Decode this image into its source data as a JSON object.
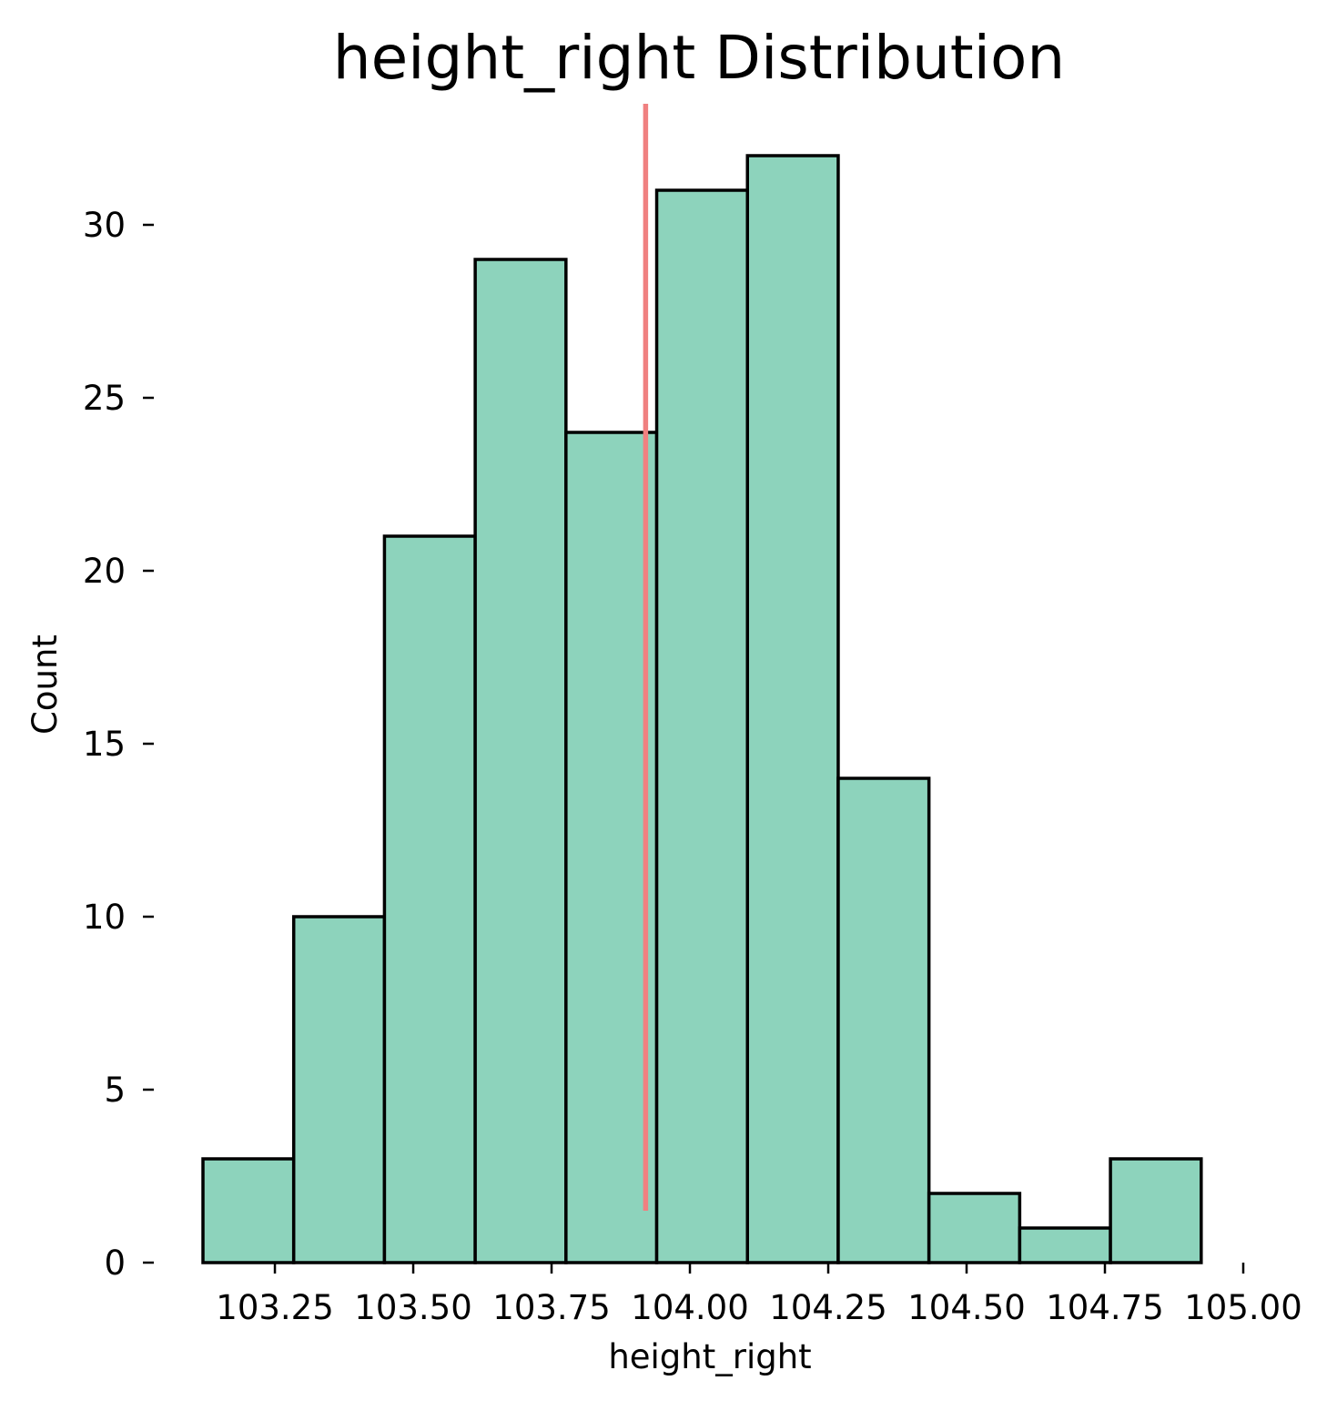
{
  "chart_data": {
    "type": "bar",
    "title": "height_right Distribution",
    "xlabel": "height_right",
    "ylabel": "Count",
    "bins": [
      {
        "x0": 103.12,
        "x1": 103.284,
        "count": 3
      },
      {
        "x0": 103.284,
        "x1": 103.448,
        "count": 10
      },
      {
        "x0": 103.448,
        "x1": 103.612,
        "count": 21
      },
      {
        "x0": 103.612,
        "x1": 103.776,
        "count": 29
      },
      {
        "x0": 103.776,
        "x1": 103.94,
        "count": 24
      },
      {
        "x0": 103.94,
        "x1": 104.104,
        "count": 31
      },
      {
        "x0": 104.104,
        "x1": 104.268,
        "count": 32
      },
      {
        "x0": 104.268,
        "x1": 104.432,
        "count": 14
      },
      {
        "x0": 104.432,
        "x1": 104.596,
        "count": 2
      },
      {
        "x0": 104.596,
        "x1": 104.76,
        "count": 1
      },
      {
        "x0": 104.76,
        "x1": 104.924,
        "count": 3
      }
    ],
    "mean_line": {
      "x": 103.92,
      "y_range": [
        1.5,
        33.5
      ],
      "color": "#f08080"
    },
    "xlim": [
      103.12,
      105.0
    ],
    "ylim": [
      0,
      33.5
    ],
    "xticks": [
      103.25,
      103.5,
      103.75,
      104.0,
      104.25,
      104.5,
      104.75,
      105.0
    ],
    "xtick_labels": [
      "103.25",
      "103.50",
      "103.75",
      "104.00",
      "104.25",
      "104.50",
      "104.75",
      "105.00"
    ],
    "yticks": [
      0,
      5,
      10,
      15,
      20,
      25,
      30
    ],
    "ytick_labels": [
      "0",
      "5",
      "10",
      "15",
      "20",
      "25",
      "30"
    ],
    "grid": false,
    "bar_color": "#8dd3bc",
    "edge_color": "#000000"
  }
}
